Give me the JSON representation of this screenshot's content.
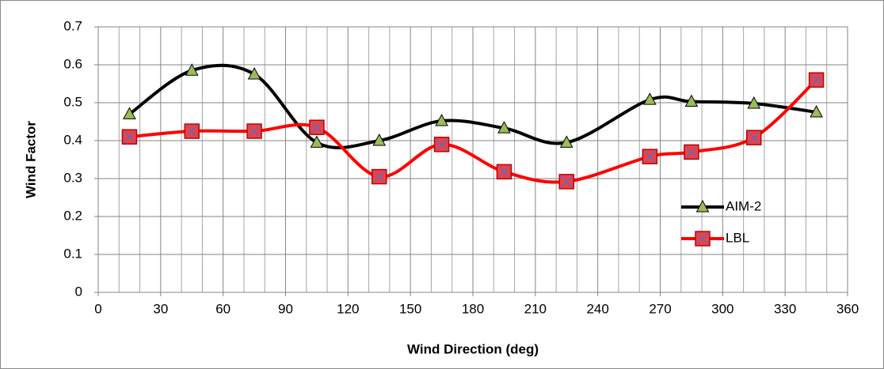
{
  "chart_data": {
    "type": "line",
    "smooth": true,
    "x_label": "Wind Direction (deg)",
    "y_label": "Wind Factor",
    "x": [
      15,
      45,
      75,
      105,
      135,
      165,
      195,
      225,
      265,
      285,
      315,
      345
    ],
    "series": [
      {
        "name": "AIM-2",
        "color": "#000000",
        "marker": "triangle",
        "marker_color": "#9bbb59",
        "values": [
          0.47,
          0.585,
          0.575,
          0.395,
          0.4,
          0.452,
          0.433,
          0.395,
          0.508,
          0.503,
          0.498,
          0.475
        ]
      },
      {
        "name": "LBL",
        "color": "#ff0000",
        "marker": "square",
        "marker_color": "#f04040",
        "values": [
          0.41,
          0.425,
          0.425,
          0.435,
          0.305,
          0.39,
          0.318,
          0.292,
          0.358,
          0.37,
          0.408,
          0.56
        ]
      }
    ],
    "xlim": [
      0,
      360
    ],
    "xticks": [
      0,
      30,
      60,
      90,
      120,
      150,
      180,
      210,
      240,
      270,
      300,
      330,
      360
    ],
    "ylim": [
      0,
      0.7
    ],
    "yticks": [
      0,
      0.1,
      0.2,
      0.3,
      0.4,
      0.5,
      0.6,
      0.7
    ],
    "grid": true,
    "legend": "right"
  }
}
